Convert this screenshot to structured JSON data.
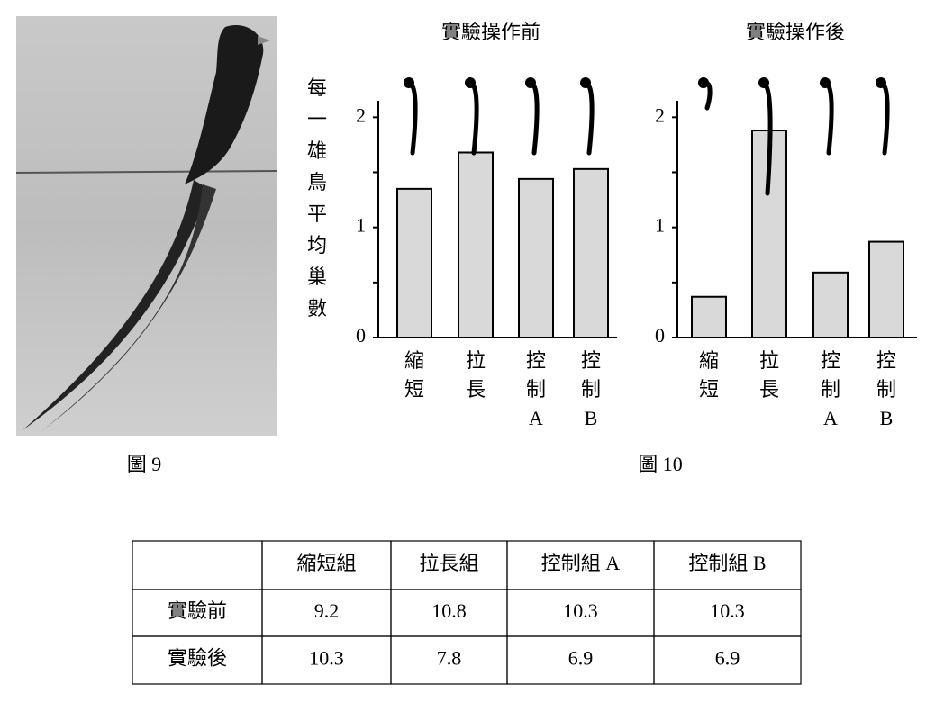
{
  "chart_data": [
    {
      "type": "bar",
      "title": "實驗操作前",
      "ylabel": "每一雄鳥平均巢數",
      "categories": [
        "縮短",
        "拉長",
        "控制A",
        "控制B"
      ],
      "values": [
        1.35,
        1.68,
        1.44,
        1.53
      ],
      "color": "#d9d9d9",
      "ylim": [
        0,
        2.15
      ],
      "yticks": [
        0,
        1,
        2
      ],
      "minor_yticks": [
        0.5,
        1.5
      ]
    },
    {
      "type": "bar",
      "title": "實驗操作後",
      "categories": [
        "縮短",
        "拉長",
        "控制A",
        "控制B"
      ],
      "values": [
        0.37,
        1.88,
        0.59,
        0.87
      ],
      "color": "#d9d9d9",
      "ylim": [
        0,
        2.15
      ],
      "yticks": [
        0,
        1,
        2
      ],
      "minor_yticks": [
        0.5,
        1.5
      ]
    }
  ],
  "captions": [
    "圖 9",
    "圖 10"
  ],
  "table": {
    "header": [
      "縮短組",
      "拉長組",
      "控制組 A",
      "控制組 B"
    ],
    "rows": [
      {
        "label": "實驗前",
        "values": [
          9.2,
          10.8,
          10.3,
          10.3
        ]
      },
      {
        "label": "實驗後",
        "values": [
          10.3,
          7.8,
          6.9,
          6.9
        ]
      }
    ]
  }
}
